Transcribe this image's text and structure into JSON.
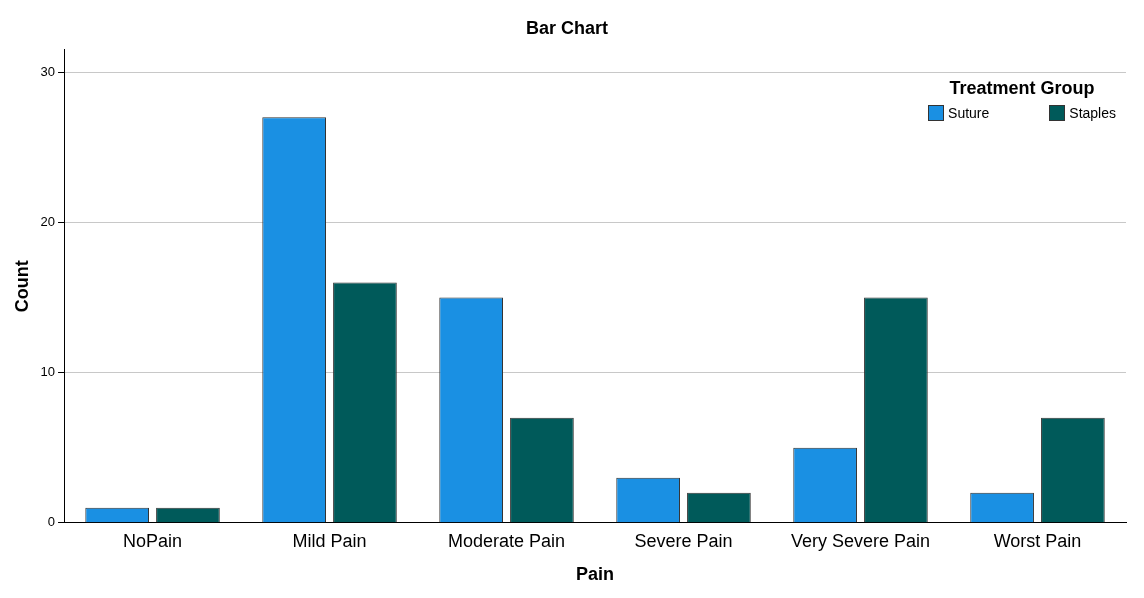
{
  "chart_data": {
    "type": "bar",
    "title": "Bar Chart",
    "xlabel": "Pain",
    "ylabel": "Count",
    "legend_title": "Treatment Group",
    "categories": [
      "NoPain",
      "Mild Pain",
      "Moderate Pain",
      "Severe Pain",
      "Very Severe Pain",
      "Worst Pain"
    ],
    "series": [
      {
        "name": "Suture",
        "color": "#1a90e3",
        "values": [
          1,
          27,
          15,
          3,
          5,
          2
        ]
      },
      {
        "name": "Staples",
        "color": "#005a5a",
        "values": [
          1,
          16,
          7,
          2,
          15,
          7
        ]
      }
    ],
    "ylim": [
      0,
      31.5
    ],
    "yticks": [
      0,
      10,
      20,
      30
    ],
    "grid": "y",
    "legend": "top right"
  }
}
